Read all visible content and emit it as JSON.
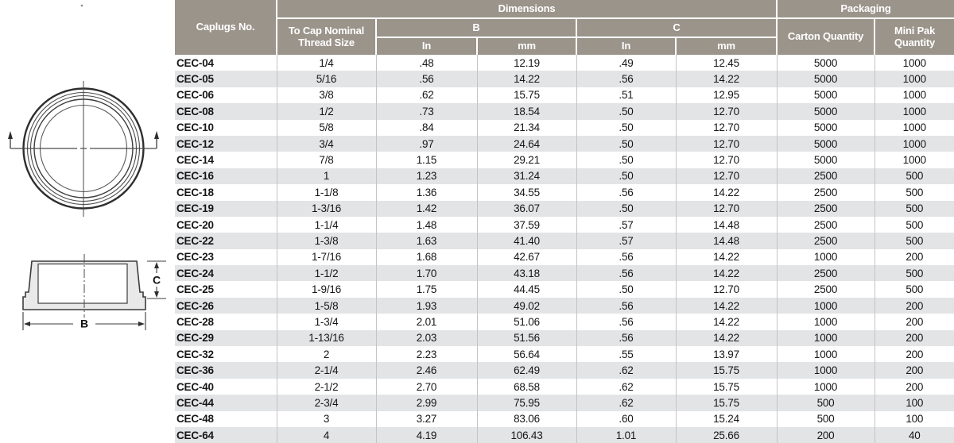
{
  "colors": {
    "header_bg": "#9b948b",
    "header_text": "#ffffff",
    "row_stripe": "#e3e4e6",
    "column_divider": "#c4c4c6",
    "body_text": "#161616",
    "diagram_fill": "#e9e9e9",
    "diagram_line": "#3c3c3c"
  },
  "diagrams": {
    "top_view": {
      "name": "cap top view with section line"
    },
    "section_view": {
      "label_b": "B",
      "label_c": "C"
    }
  },
  "table": {
    "header": {
      "caplugs_no": "Caplugs No.",
      "dimensions": "Dimensions",
      "packaging": "Packaging",
      "thread_size": "To Cap Nominal Thread Size",
      "b": "B",
      "c": "C",
      "b_in": "In",
      "b_mm": "mm",
      "c_in": "In",
      "c_mm": "mm",
      "carton": "Carton Quantity",
      "mini_pak": "Mini Pak Quantity"
    },
    "columns": [
      "no",
      "thread",
      "b_in",
      "b_mm",
      "c_in",
      "c_mm",
      "carton",
      "mini_pak"
    ],
    "rows": [
      {
        "no": "CEC-04",
        "thread": "1/4",
        "b_in": ".48",
        "b_mm": "12.19",
        "c_in": ".49",
        "c_mm": "12.45",
        "carton": "5000",
        "mini_pak": "1000"
      },
      {
        "no": "CEC-05",
        "thread": "5/16",
        "b_in": ".56",
        "b_mm": "14.22",
        "c_in": ".56",
        "c_mm": "14.22",
        "carton": "5000",
        "mini_pak": "1000"
      },
      {
        "no": "CEC-06",
        "thread": "3/8",
        "b_in": ".62",
        "b_mm": "15.75",
        "c_in": ".51",
        "c_mm": "12.95",
        "carton": "5000",
        "mini_pak": "1000"
      },
      {
        "no": "CEC-08",
        "thread": "1/2",
        "b_in": ".73",
        "b_mm": "18.54",
        "c_in": ".50",
        "c_mm": "12.70",
        "carton": "5000",
        "mini_pak": "1000"
      },
      {
        "no": "CEC-10",
        "thread": "5/8",
        "b_in": ".84",
        "b_mm": "21.34",
        "c_in": ".50",
        "c_mm": "12.70",
        "carton": "5000",
        "mini_pak": "1000"
      },
      {
        "no": "CEC-12",
        "thread": "3/4",
        "b_in": ".97",
        "b_mm": "24.64",
        "c_in": ".50",
        "c_mm": "12.70",
        "carton": "5000",
        "mini_pak": "1000"
      },
      {
        "no": "CEC-14",
        "thread": "7/8",
        "b_in": "1.15",
        "b_mm": "29.21",
        "c_in": ".50",
        "c_mm": "12.70",
        "carton": "5000",
        "mini_pak": "1000"
      },
      {
        "no": "CEC-16",
        "thread": "1",
        "b_in": "1.23",
        "b_mm": "31.24",
        "c_in": ".50",
        "c_mm": "12.70",
        "carton": "2500",
        "mini_pak": "500"
      },
      {
        "no": "CEC-18",
        "thread": "1-1/8",
        "b_in": "1.36",
        "b_mm": "34.55",
        "c_in": ".56",
        "c_mm": "14.22",
        "carton": "2500",
        "mini_pak": "500"
      },
      {
        "no": "CEC-19",
        "thread": "1-3/16",
        "b_in": "1.42",
        "b_mm": "36.07",
        "c_in": ".50",
        "c_mm": "12.70",
        "carton": "2500",
        "mini_pak": "500"
      },
      {
        "no": "CEC-20",
        "thread": "1-1/4",
        "b_in": "1.48",
        "b_mm": "37.59",
        "c_in": ".57",
        "c_mm": "14.48",
        "carton": "2500",
        "mini_pak": "500"
      },
      {
        "no": "CEC-22",
        "thread": "1-3/8",
        "b_in": "1.63",
        "b_mm": "41.40",
        "c_in": ".57",
        "c_mm": "14.48",
        "carton": "2500",
        "mini_pak": "500"
      },
      {
        "no": "CEC-23",
        "thread": "1-7/16",
        "b_in": "1.68",
        "b_mm": "42.67",
        "c_in": ".56",
        "c_mm": "14.22",
        "carton": "1000",
        "mini_pak": "200"
      },
      {
        "no": "CEC-24",
        "thread": "1-1/2",
        "b_in": "1.70",
        "b_mm": "43.18",
        "c_in": ".56",
        "c_mm": "14.22",
        "carton": "2500",
        "mini_pak": "500"
      },
      {
        "no": "CEC-25",
        "thread": "1-9/16",
        "b_in": "1.75",
        "b_mm": "44.45",
        "c_in": ".50",
        "c_mm": "12.70",
        "carton": "2500",
        "mini_pak": "500"
      },
      {
        "no": "CEC-26",
        "thread": "1-5/8",
        "b_in": "1.93",
        "b_mm": "49.02",
        "c_in": ".56",
        "c_mm": "14.22",
        "carton": "1000",
        "mini_pak": "200"
      },
      {
        "no": "CEC-28",
        "thread": "1-3/4",
        "b_in": "2.01",
        "b_mm": "51.06",
        "c_in": ".56",
        "c_mm": "14.22",
        "carton": "1000",
        "mini_pak": "200"
      },
      {
        "no": "CEC-29",
        "thread": "1-13/16",
        "b_in": "2.03",
        "b_mm": "51.56",
        "c_in": ".56",
        "c_mm": "14.22",
        "carton": "1000",
        "mini_pak": "200"
      },
      {
        "no": "CEC-32",
        "thread": "2",
        "b_in": "2.23",
        "b_mm": "56.64",
        "c_in": ".55",
        "c_mm": "13.97",
        "carton": "1000",
        "mini_pak": "200"
      },
      {
        "no": "CEC-36",
        "thread": "2-1/4",
        "b_in": "2.46",
        "b_mm": "62.49",
        "c_in": ".62",
        "c_mm": "15.75",
        "carton": "1000",
        "mini_pak": "200"
      },
      {
        "no": "CEC-40",
        "thread": "2-1/2",
        "b_in": "2.70",
        "b_mm": "68.58",
        "c_in": ".62",
        "c_mm": "15.75",
        "carton": "1000",
        "mini_pak": "200"
      },
      {
        "no": "CEC-44",
        "thread": "2-3/4",
        "b_in": "2.99",
        "b_mm": "75.95",
        "c_in": ".62",
        "c_mm": "15.75",
        "carton": "500",
        "mini_pak": "100"
      },
      {
        "no": "CEC-48",
        "thread": "3",
        "b_in": "3.27",
        "b_mm": "83.06",
        "c_in": ".60",
        "c_mm": "15.24",
        "carton": "500",
        "mini_pak": "100"
      },
      {
        "no": "CEC-64",
        "thread": "4",
        "b_in": "4.19",
        "b_mm": "106.43",
        "c_in": "1.01",
        "c_mm": "25.66",
        "carton": "200",
        "mini_pak": "40"
      }
    ]
  }
}
